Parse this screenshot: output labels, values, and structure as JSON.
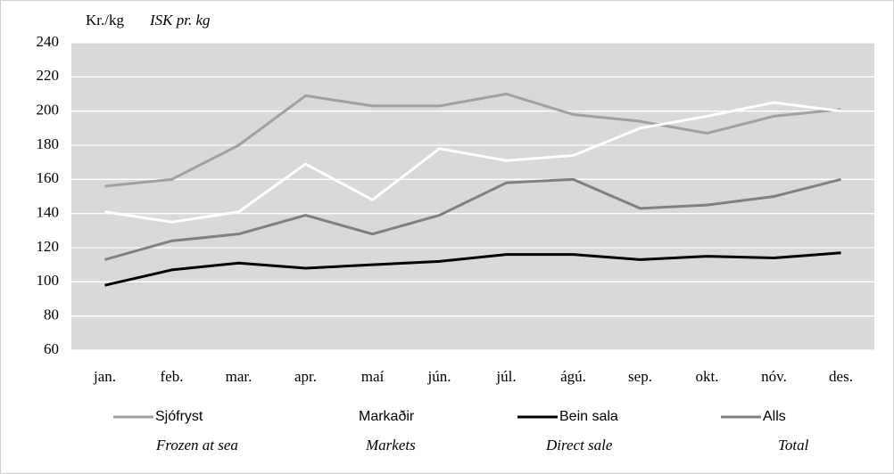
{
  "chart_data": {
    "type": "line",
    "y_label": "Kr./kg",
    "y_label_en": "ISK pr. kg",
    "categories": [
      "jan.",
      "feb.",
      "mar.",
      "apr.",
      "maí",
      "jún.",
      "júl.",
      "ágú.",
      "sep.",
      "okt.",
      "nóv.",
      "des."
    ],
    "series": [
      {
        "name": "Sjófryst",
        "translation": "Frozen at sea",
        "color": "#a0a0a0",
        "values": [
          156,
          160,
          180,
          209,
          203,
          203,
          210,
          198,
          194,
          187,
          197,
          201
        ]
      },
      {
        "name": "Markaðir",
        "translation": "Markets",
        "color": "#ffffff",
        "values": [
          141,
          135,
          141,
          169,
          148,
          178,
          171,
          174,
          190,
          197,
          205,
          200
        ]
      },
      {
        "name": "Bein sala",
        "translation": "Direct sale",
        "color": "#000000",
        "values": [
          98,
          107,
          111,
          108,
          110,
          112,
          116,
          116,
          113,
          115,
          114,
          117
        ]
      },
      {
        "name": "Alls",
        "translation": "Total",
        "color": "#808080",
        "values": [
          113,
          124,
          128,
          139,
          128,
          139,
          158,
          160,
          143,
          145,
          150,
          160
        ]
      }
    ],
    "ylim": [
      60,
      240
    ],
    "yticks": [
      60,
      80,
      100,
      120,
      140,
      160,
      180,
      200,
      220,
      240
    ],
    "grid": true,
    "legend": "bottom"
  }
}
